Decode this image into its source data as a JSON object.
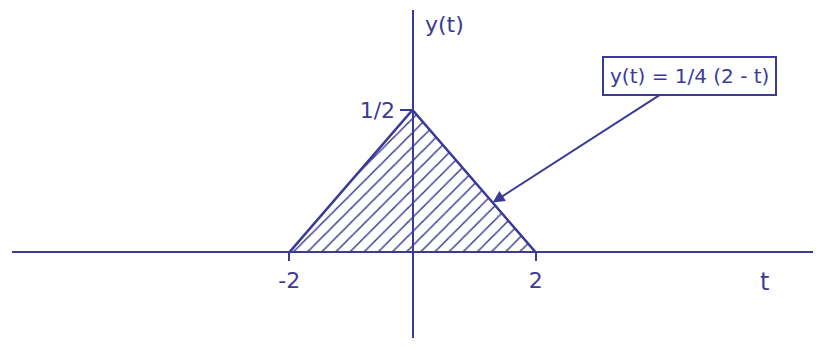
{
  "chart_data": {
    "type": "area",
    "x": [
      -2,
      0,
      2
    ],
    "values": [
      0,
      0.5,
      0
    ],
    "color": "#3b3b96",
    "xlabel": "t",
    "ylabel": "y(t)",
    "xlim": [
      -6.5,
      6.5
    ],
    "xticks": [
      -2,
      2
    ],
    "ylim": [
      -0.3,
      0.85
    ],
    "yticks": [
      {
        "value": 0.5,
        "label": "1/2"
      }
    ],
    "annotations": [
      {
        "text": "y(t) = 1/4 (2 - t)",
        "x": 1.3,
        "y": 0.175
      }
    ],
    "grid": false
  }
}
